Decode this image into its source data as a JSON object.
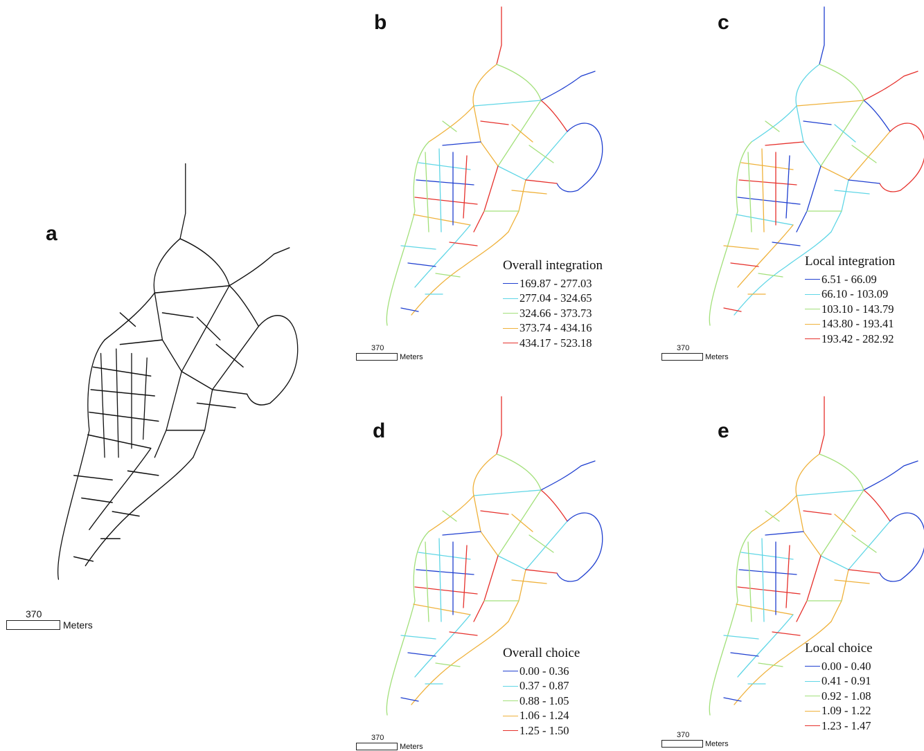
{
  "panels": [
    {
      "letter": "a",
      "scale": {
        "value": "370",
        "unit": "Meters"
      }
    },
    {
      "letter": "b",
      "scale": {
        "value": "370",
        "unit": "Meters"
      },
      "legend": {
        "title": "Overall integration",
        "items": [
          {
            "label": "169.87 - 277.03",
            "color": "#1f3fd0"
          },
          {
            "label": "277.04 - 324.65",
            "color": "#5fd6e6"
          },
          {
            "label": "324.66 - 373.73",
            "color": "#a2e07a"
          },
          {
            "label": "373.74 - 434.16",
            "color": "#efb13a"
          },
          {
            "label": "434.17 - 523.18",
            "color": "#e6302b"
          }
        ]
      }
    },
    {
      "letter": "c",
      "scale": {
        "value": "370",
        "unit": "Meters"
      },
      "legend": {
        "title": "Local integration",
        "items": [
          {
            "label": "6.51 - 66.09",
            "color": "#1f3fd0"
          },
          {
            "label": "66.10 - 103.09",
            "color": "#5fd6e6"
          },
          {
            "label": "103.10 - 143.79",
            "color": "#a2e07a"
          },
          {
            "label": "143.80 - 193.41",
            "color": "#efb13a"
          },
          {
            "label": "193.42 - 282.92",
            "color": "#e6302b"
          }
        ]
      }
    },
    {
      "letter": "d",
      "scale": {
        "value": "370",
        "unit": "Meters"
      },
      "legend": {
        "title": "Overall choice",
        "items": [
          {
            "label": "0.00 - 0.36",
            "color": "#1f3fd0"
          },
          {
            "label": "0.37 - 0.87",
            "color": "#5fd6e6"
          },
          {
            "label": "0.88 - 1.05",
            "color": "#a2e07a"
          },
          {
            "label": "1.06 - 1.24",
            "color": "#efb13a"
          },
          {
            "label": "1.25 - 1.50",
            "color": "#e6302b"
          }
        ]
      }
    },
    {
      "letter": "e",
      "scale": {
        "value": "370",
        "unit": "Meters"
      },
      "legend": {
        "title": "Local choice",
        "items": [
          {
            "label": "0.00 - 0.40",
            "color": "#1f3fd0"
          },
          {
            "label": "0.41 - 0.91",
            "color": "#5fd6e6"
          },
          {
            "label": "0.92 - 1.08",
            "color": "#a2e07a"
          },
          {
            "label": "1.09 - 1.22",
            "color": "#efb13a"
          },
          {
            "label": "1.23 - 1.47",
            "color": "#e6302b"
          }
        ]
      }
    }
  ]
}
